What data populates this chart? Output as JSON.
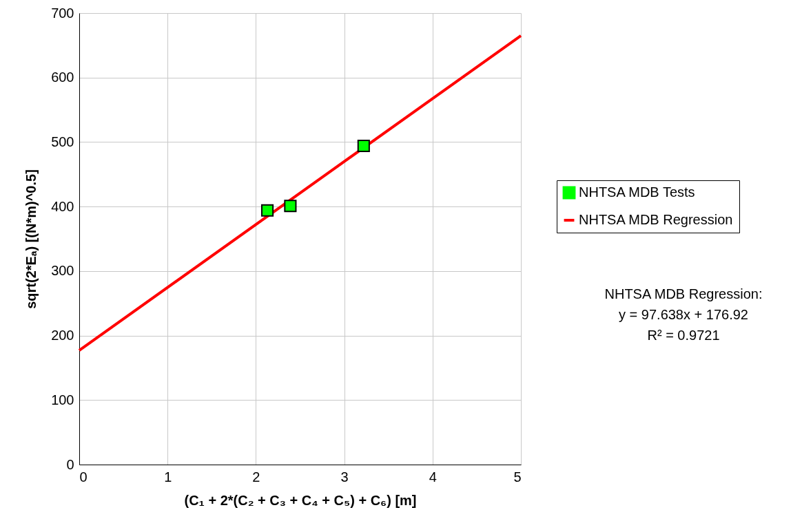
{
  "chart_data": {
    "type": "scatter",
    "xlabel": "(C₁ + 2*(C₂ + C₃ + C₄ + C₅) + C₆) [m]",
    "ylabel": "sqrt(2*Eₐ) [(N*m)^0.5]",
    "series": [
      {
        "name": "NHTSA MDB Tests",
        "marker": "square",
        "color": "#00ff00",
        "x": [
          2.13,
          2.39,
          3.22
        ],
        "values": [
          394,
          401,
          494
        ]
      },
      {
        "name": "NHTSA MDB Regression",
        "type": "line",
        "marker": "none",
        "line_style": "solid",
        "color": "#ff0000",
        "x": [
          0,
          5
        ],
        "values": [
          177,
          665
        ]
      }
    ],
    "annotations": [
      "NHTSA MDB Regression:",
      "y = 97.638x + 176.92",
      "R² = 0.9721"
    ],
    "xlim": [
      0,
      5
    ],
    "xticks": [
      0,
      1,
      2,
      3,
      4,
      5
    ],
    "ylim": [
      0,
      700
    ],
    "yticks": [
      0,
      100,
      200,
      300,
      400,
      500,
      600,
      700
    ],
    "grid": true,
    "legend": "right"
  }
}
